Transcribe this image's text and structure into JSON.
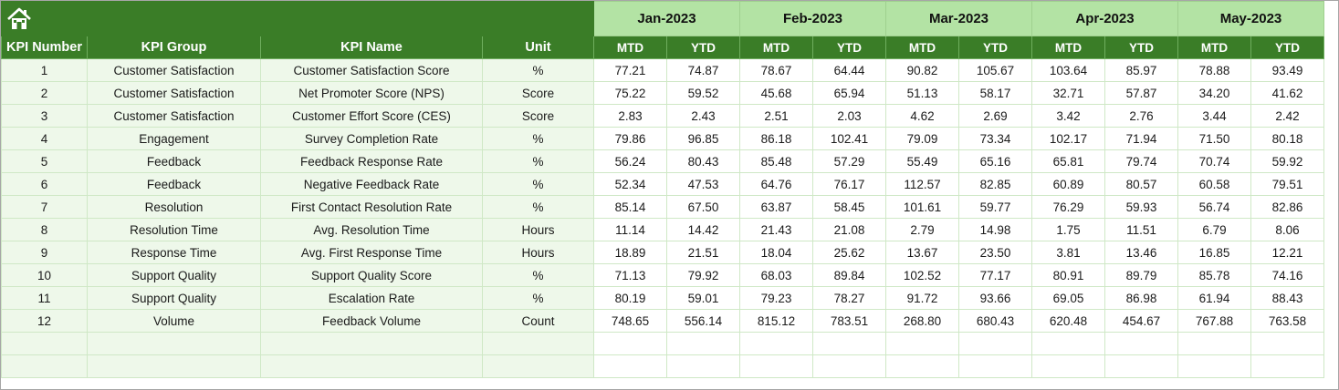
{
  "months": [
    "Jan-2023",
    "Feb-2023",
    "Mar-2023",
    "Apr-2023",
    "May-2023"
  ],
  "headers": {
    "kpi_number": "KPI Number",
    "kpi_group": "KPI Group",
    "kpi_name": "KPI Name",
    "unit": "Unit",
    "mtd": "MTD",
    "ytd": "YTD"
  },
  "icon": "home-icon",
  "colors": {
    "header_green": "#3a7d27",
    "month_green": "#b3e3a4",
    "row_tint": "#eef8ea"
  },
  "rows": [
    {
      "num": "1",
      "group": "Customer Satisfaction",
      "name": "Customer Satisfaction Score",
      "unit": "%",
      "vals": [
        "77.21",
        "74.87",
        "78.67",
        "64.44",
        "90.82",
        "105.67",
        "103.64",
        "85.97",
        "78.88",
        "93.49"
      ]
    },
    {
      "num": "2",
      "group": "Customer Satisfaction",
      "name": "Net Promoter Score (NPS)",
      "unit": "Score",
      "vals": [
        "75.22",
        "59.52",
        "45.68",
        "65.94",
        "51.13",
        "58.17",
        "32.71",
        "57.87",
        "34.20",
        "41.62"
      ]
    },
    {
      "num": "3",
      "group": "Customer Satisfaction",
      "name": "Customer Effort Score (CES)",
      "unit": "Score",
      "vals": [
        "2.83",
        "2.43",
        "2.51",
        "2.03",
        "4.62",
        "2.69",
        "3.42",
        "2.76",
        "3.44",
        "2.42"
      ]
    },
    {
      "num": "4",
      "group": "Engagement",
      "name": "Survey Completion Rate",
      "unit": "%",
      "vals": [
        "79.86",
        "96.85",
        "86.18",
        "102.41",
        "79.09",
        "73.34",
        "102.17",
        "71.94",
        "71.50",
        "80.18"
      ]
    },
    {
      "num": "5",
      "group": "Feedback",
      "name": "Feedback Response Rate",
      "unit": "%",
      "vals": [
        "56.24",
        "80.43",
        "85.48",
        "57.29",
        "55.49",
        "65.16",
        "65.81",
        "79.74",
        "70.74",
        "59.92"
      ]
    },
    {
      "num": "6",
      "group": "Feedback",
      "name": "Negative Feedback Rate",
      "unit": "%",
      "vals": [
        "52.34",
        "47.53",
        "64.76",
        "76.17",
        "112.57",
        "82.85",
        "60.89",
        "80.57",
        "60.58",
        "79.51"
      ]
    },
    {
      "num": "7",
      "group": "Resolution",
      "name": "First Contact Resolution Rate",
      "unit": "%",
      "vals": [
        "85.14",
        "67.50",
        "63.87",
        "58.45",
        "101.61",
        "59.77",
        "76.29",
        "59.93",
        "56.74",
        "82.86"
      ]
    },
    {
      "num": "8",
      "group": "Resolution Time",
      "name": "Avg. Resolution Time",
      "unit": "Hours",
      "vals": [
        "11.14",
        "14.42",
        "21.43",
        "21.08",
        "2.79",
        "14.98",
        "1.75",
        "11.51",
        "6.79",
        "8.06"
      ]
    },
    {
      "num": "9",
      "group": "Response Time",
      "name": "Avg. First Response Time",
      "unit": "Hours",
      "vals": [
        "18.89",
        "21.51",
        "18.04",
        "25.62",
        "13.67",
        "23.50",
        "3.81",
        "13.46",
        "16.85",
        "12.21"
      ]
    },
    {
      "num": "10",
      "group": "Support Quality",
      "name": "Support Quality Score",
      "unit": "%",
      "vals": [
        "71.13",
        "79.92",
        "68.03",
        "89.84",
        "102.52",
        "77.17",
        "80.91",
        "89.79",
        "85.78",
        "74.16"
      ]
    },
    {
      "num": "11",
      "group": "Support Quality",
      "name": "Escalation Rate",
      "unit": "%",
      "vals": [
        "80.19",
        "59.01",
        "79.23",
        "78.27",
        "91.72",
        "93.66",
        "69.05",
        "86.98",
        "61.94",
        "88.43"
      ]
    },
    {
      "num": "12",
      "group": "Volume",
      "name": "Feedback Volume",
      "unit": "Count",
      "vals": [
        "748.65",
        "556.14",
        "815.12",
        "783.51",
        "268.80",
        "680.43",
        "620.48",
        "454.67",
        "767.88",
        "763.58"
      ]
    }
  ]
}
